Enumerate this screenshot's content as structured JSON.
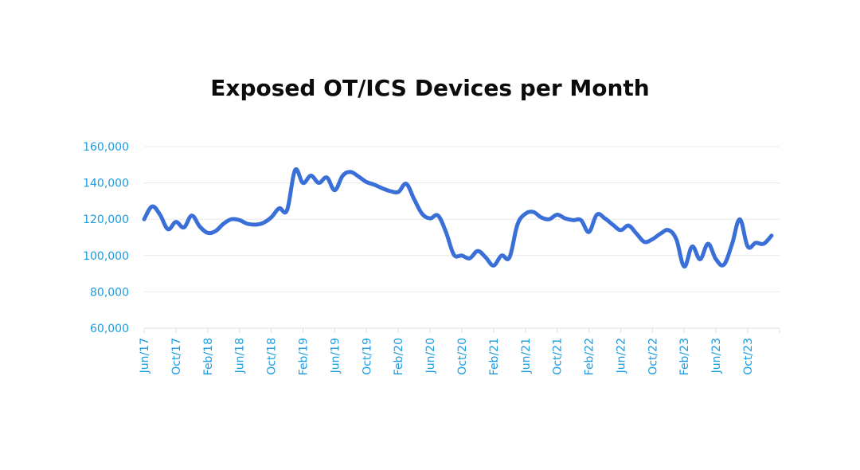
{
  "chart_data": {
    "type": "line",
    "title": "Exposed OT/ICS Devices per Month",
    "xlabel": "",
    "ylabel": "",
    "ylim": [
      60000,
      160000
    ],
    "yticks": [
      "160,000",
      "140,000",
      "120,000",
      "100,000",
      "80,000",
      "60,000"
    ],
    "ytick_values": [
      160000,
      140000,
      120000,
      100000,
      80000,
      60000
    ],
    "xticks": [
      "Jun/17",
      "Oct/17",
      "Feb/18",
      "Jun/18",
      "Oct/18",
      "Feb/19",
      "Jun/19",
      "Oct/19",
      "Feb/20",
      "Jun/20",
      "Oct/20",
      "Feb/21",
      "Jun/21",
      "Oct/21",
      "Feb/22",
      "Jun/22",
      "Oct/22",
      "Feb/23",
      "Jun/23",
      "Oct/23"
    ],
    "xtick_month_index": [
      0,
      4,
      8,
      12,
      16,
      20,
      24,
      28,
      32,
      36,
      40,
      44,
      48,
      52,
      56,
      60,
      64,
      68,
      72,
      76
    ],
    "x_axis_months": 81,
    "grid": true,
    "legend": "none",
    "line_color": "#3a6fd8",
    "tick_color": "#1a9be0",
    "series": [
      {
        "name": "Exposed OT/ICS Devices",
        "start": "Jun/17",
        "values": [
          120000,
          127000,
          122500,
          114500,
          118500,
          115500,
          122000,
          116000,
          112500,
          113500,
          117500,
          120000,
          119500,
          117500,
          117000,
          118000,
          121000,
          126000,
          125000,
          147000,
          140000,
          144000,
          140000,
          143000,
          136000,
          144000,
          146000,
          143500,
          140500,
          139000,
          137000,
          135500,
          135000,
          139500,
          131000,
          123000,
          120500,
          122000,
          113000,
          100500,
          100000,
          98500,
          102500,
          99000,
          94500,
          100000,
          99000,
          117000,
          123000,
          124000,
          121000,
          120000,
          122500,
          120500,
          119500,
          119500,
          113000,
          122500,
          120500,
          117000,
          114000,
          116500,
          112000,
          107500,
          109000,
          112000,
          114000,
          109000,
          94000,
          105000,
          98000,
          106500,
          98000,
          95000,
          106000,
          120000,
          105000,
          107000,
          106500,
          111000
        ]
      }
    ]
  }
}
